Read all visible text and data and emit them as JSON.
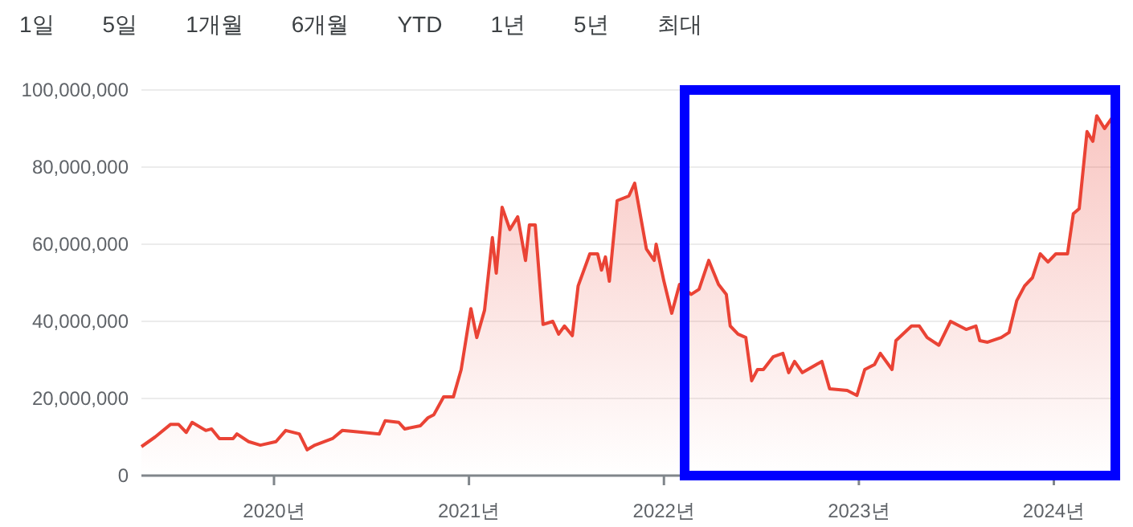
{
  "chart_data": {
    "type": "area",
    "color": "#ea4335",
    "grid": "y",
    "annotations": [
      "1일",
      "5일",
      "1개월",
      "6개월",
      "YTD",
      "1년",
      "5년",
      "최대"
    ],
    "xlim": [
      2019.32,
      2024.34
    ],
    "ylim": [
      0,
      100000000
    ],
    "xticks": [
      {
        "value": 2020,
        "label": "2020년"
      },
      {
        "value": 2021,
        "label": "2021년"
      },
      {
        "value": 2022,
        "label": "2022년"
      },
      {
        "value": 2023,
        "label": "2023년"
      },
      {
        "value": 2024,
        "label": "2024년"
      }
    ],
    "yticks": [
      {
        "value": 0,
        "label": "0"
      },
      {
        "value": 20000000,
        "label": "20,000,000"
      },
      {
        "value": 40000000,
        "label": "40,000,000"
      },
      {
        "value": 60000000,
        "label": "60,000,000"
      },
      {
        "value": 80000000,
        "label": "80,000,000"
      },
      {
        "value": 100000000,
        "label": "100,000,000"
      }
    ],
    "x": [
      2019.32,
      2019.39,
      2019.47,
      2019.51,
      2019.55,
      2019.58,
      2019.65,
      2019.68,
      2019.72,
      2019.79,
      2019.81,
      2019.87,
      2019.93,
      2020.01,
      2020.06,
      2020.13,
      2020.17,
      2020.21,
      2020.3,
      2020.35,
      2020.46,
      2020.54,
      2020.57,
      2020.64,
      2020.67,
      2020.75,
      2020.79,
      2020.82,
      2020.87,
      2020.92,
      2020.96,
      2021.01,
      2021.04,
      2021.08,
      2021.12,
      2021.14,
      2021.17,
      2021.21,
      2021.25,
      2021.29,
      2021.31,
      2021.34,
      2021.38,
      2021.43,
      2021.46,
      2021.49,
      2021.53,
      2021.56,
      2021.62,
      2021.66,
      2021.68,
      2021.7,
      2021.72,
      2021.76,
      2021.82,
      2021.85,
      2021.91,
      2021.95,
      2021.96,
      2022.0,
      2022.04,
      2022.08,
      2022.14,
      2022.18,
      2022.23,
      2022.28,
      2022.32,
      2022.34,
      2022.38,
      2022.42,
      2022.45,
      2022.48,
      2022.51,
      2022.56,
      2022.61,
      2022.64,
      2022.67,
      2022.71,
      2022.81,
      2022.85,
      2022.94,
      2022.99,
      2023.03,
      2023.08,
      2023.11,
      2023.17,
      2023.19,
      2023.27,
      2023.31,
      2023.35,
      2023.41,
      2023.47,
      2023.55,
      2023.6,
      2023.62,
      2023.66,
      2023.73,
      2023.77,
      2023.81,
      2023.85,
      2023.89,
      2023.93,
      2023.97,
      2024.01,
      2024.07,
      2024.1,
      2024.13,
      2024.17,
      2024.2,
      2024.22,
      2024.26,
      2024.3
    ],
    "values": [
      7500000,
      10000000,
      13300000,
      13300000,
      11200000,
      13800000,
      11700000,
      12100000,
      9600000,
      9600000,
      10800000,
      8800000,
      7900000,
      8800000,
      11700000,
      10800000,
      6700000,
      7900000,
      9600000,
      11700000,
      11200000,
      10800000,
      14200000,
      13800000,
      12100000,
      12900000,
      15000000,
      15800000,
      20400000,
      20400000,
      27500000,
      43300000,
      35800000,
      42900000,
      61700000,
      52500000,
      69600000,
      63800000,
      67100000,
      55800000,
      65000000,
      65000000,
      39200000,
      40000000,
      36700000,
      38800000,
      36300000,
      49200000,
      57500000,
      57500000,
      53300000,
      56700000,
      50400000,
      71300000,
      72500000,
      75800000,
      58800000,
      55800000,
      60000000,
      50400000,
      42100000,
      49600000,
      47000000,
      48300000,
      55800000,
      49600000,
      47000000,
      38800000,
      36700000,
      35800000,
      24600000,
      27500000,
      27500000,
      30800000,
      31700000,
      26700000,
      29600000,
      26700000,
      29600000,
      22500000,
      22100000,
      20800000,
      27500000,
      28800000,
      31700000,
      27500000,
      35000000,
      38800000,
      38800000,
      35800000,
      33800000,
      40000000,
      37900000,
      38800000,
      35000000,
      34600000,
      35800000,
      37100000,
      45400000,
      49200000,
      51300000,
      57500000,
      55400000,
      57500000,
      57500000,
      67900000,
      69200000,
      89200000,
      86700000,
      93300000,
      90000000,
      92900000
    ]
  }
}
